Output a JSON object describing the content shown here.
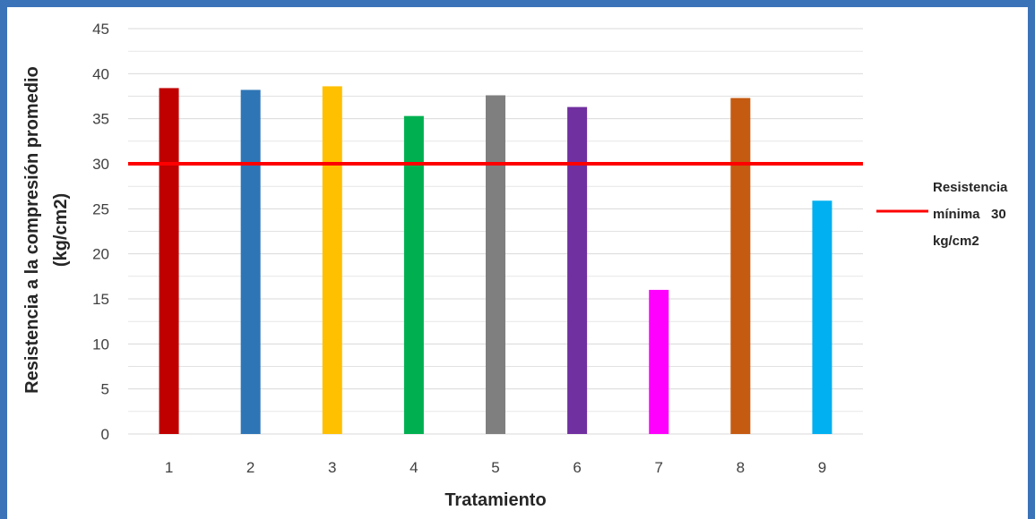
{
  "chart_data": {
    "type": "bar",
    "categories": [
      "1",
      "2",
      "3",
      "4",
      "5",
      "6",
      "7",
      "8",
      "9"
    ],
    "values": [
      38.4,
      38.2,
      38.6,
      35.3,
      37.6,
      36.3,
      16.0,
      37.3,
      25.9
    ],
    "bar_colors": [
      "#c00000",
      "#2e75b6",
      "#ffc000",
      "#00b050",
      "#7f7f7f",
      "#7030a0",
      "#ff00ff",
      "#c55a11",
      "#00b0f0"
    ],
    "ylim": [
      0,
      45
    ],
    "yticks": [
      0,
      5,
      10,
      15,
      20,
      25,
      30,
      35,
      40,
      45
    ],
    "grid": true,
    "xlabel": "Tratamiento",
    "ylabel_line1": "Resistencia a la compresión promedio",
    "ylabel_line2": "(kg/cm2)",
    "reference_line": {
      "value": 30,
      "color": "#ff0000",
      "legend_lines": [
        "Resistencia",
        "mínima   30",
        "kg/cm2"
      ]
    },
    "legend_position": "right"
  },
  "colors": {
    "frame": "#3b73b9",
    "grid": "#d9d9d9"
  }
}
